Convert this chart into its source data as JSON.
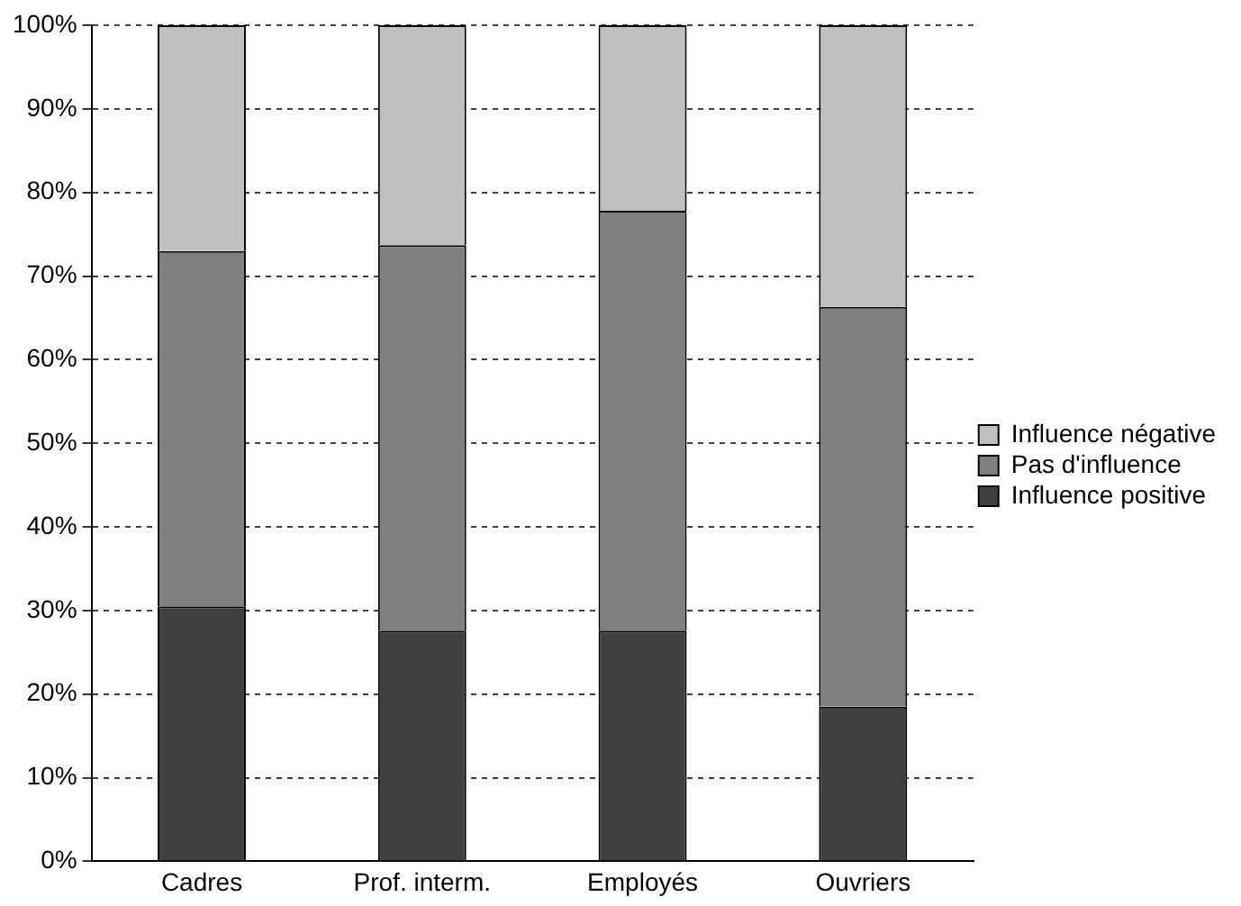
{
  "chart_data": {
    "type": "bar",
    "stacked": true,
    "categories": [
      "Cadres",
      "Prof. interm.",
      "Employés",
      "Ouvriers"
    ],
    "series": [
      {
        "name": "Influence positive",
        "color": "#404040",
        "values": [
          30.5,
          27.6,
          27.6,
          18.5
        ]
      },
      {
        "name": "Pas d'influence",
        "color": "#808080",
        "values": [
          42.5,
          46.1,
          50.2,
          47.8
        ]
      },
      {
        "name": "Influence négative",
        "color": "#c0c0c0",
        "values": [
          27,
          26.3,
          22.2,
          33.7
        ]
      }
    ],
    "ylim": [
      0,
      100
    ],
    "yticks": [
      {
        "value": 0,
        "label": "0%"
      },
      {
        "value": 10,
        "label": "10%"
      },
      {
        "value": 20,
        "label": "20%"
      },
      {
        "value": 30,
        "label": "30%"
      },
      {
        "value": 40,
        "label": "40%"
      },
      {
        "value": 50,
        "label": "50%"
      },
      {
        "value": 60,
        "label": "60%"
      },
      {
        "value": 70,
        "label": "70%"
      },
      {
        "value": 80,
        "label": "80%"
      },
      {
        "value": 90,
        "label": "90%"
      },
      {
        "value": 100,
        "label": "100%"
      }
    ],
    "grid": "y",
    "legend": "right",
    "line_style": "dashed"
  }
}
